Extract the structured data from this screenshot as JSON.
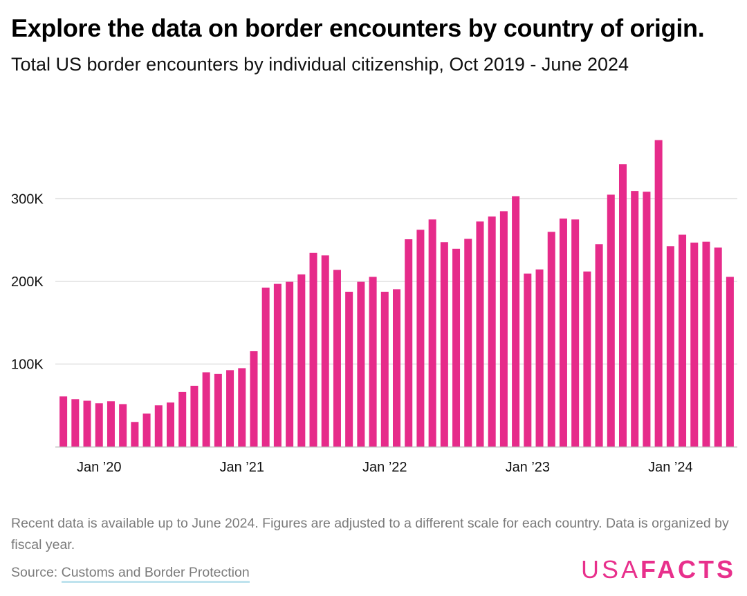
{
  "header": {
    "title": "Explore the data on border encounters by country of origin.",
    "subtitle": "Total US border encounters by individual citizenship, Oct 2019 - June 2024"
  },
  "footer": {
    "note": "Recent data is available up to June 2024. Figures are adjusted to a different scale for each country. Data is organized by fiscal year.",
    "source_prefix": "Source: ",
    "source_link": "Customs and Border Protection",
    "logo_usa": "USA",
    "logo_facts": "FACTS"
  },
  "colors": {
    "bar": "#e62b8a",
    "grid": "#d9d9d9",
    "axis": "#bdbdbd",
    "brand": "#e8308c"
  },
  "chart_data": {
    "type": "bar",
    "title": "Explore the data on border encounters by country of origin.",
    "subtitle": "Total US border encounters by individual citizenship, Oct 2019 - June 2024",
    "xlabel": "",
    "ylabel": "",
    "ylim": [
      0,
      375000
    ],
    "yticks": [
      100000,
      200000,
      300000
    ],
    "ytick_labels": [
      "100K",
      "200K",
      "300K"
    ],
    "xtick_labels": [
      "Jan ’20",
      "Jan ’21",
      "Jan ’22",
      "Jan ’23",
      "Jan ’24"
    ],
    "xtick_categories": [
      "2020-01",
      "2021-01",
      "2022-01",
      "2023-01",
      "2024-01"
    ],
    "grid": true,
    "categories": [
      "2019-10",
      "2019-11",
      "2019-12",
      "2020-01",
      "2020-02",
      "2020-03",
      "2020-04",
      "2020-05",
      "2020-06",
      "2020-07",
      "2020-08",
      "2020-09",
      "2020-10",
      "2020-11",
      "2020-12",
      "2021-01",
      "2021-02",
      "2021-03",
      "2021-04",
      "2021-05",
      "2021-06",
      "2021-07",
      "2021-08",
      "2021-09",
      "2021-10",
      "2021-11",
      "2021-12",
      "2022-01",
      "2022-02",
      "2022-03",
      "2022-04",
      "2022-05",
      "2022-06",
      "2022-07",
      "2022-08",
      "2022-09",
      "2022-10",
      "2022-11",
      "2022-12",
      "2023-01",
      "2023-02",
      "2023-03",
      "2023-04",
      "2023-05",
      "2023-06",
      "2023-07",
      "2023-08",
      "2023-09",
      "2023-10",
      "2023-11",
      "2023-12",
      "2024-01",
      "2024-02",
      "2024-03",
      "2024-04",
      "2024-05",
      "2024-06"
    ],
    "values": [
      60800,
      57500,
      55600,
      52500,
      55000,
      51500,
      29900,
      40000,
      50000,
      53400,
      66200,
      73700,
      90000,
      88000,
      92600,
      95000,
      115500,
      192500,
      197000,
      199500,
      208500,
      234500,
      231500,
      214000,
      187500,
      199500,
      205500,
      187500,
      190500,
      251000,
      262500,
      275000,
      247500,
      239500,
      251500,
      272500,
      278500,
      285000,
      303000,
      209500,
      214500,
      260000,
      276000,
      275000,
      212000,
      245000,
      305000,
      342000,
      309500,
      308500,
      371000,
      242500,
      256500,
      247000,
      248000,
      241000,
      205500
    ]
  }
}
